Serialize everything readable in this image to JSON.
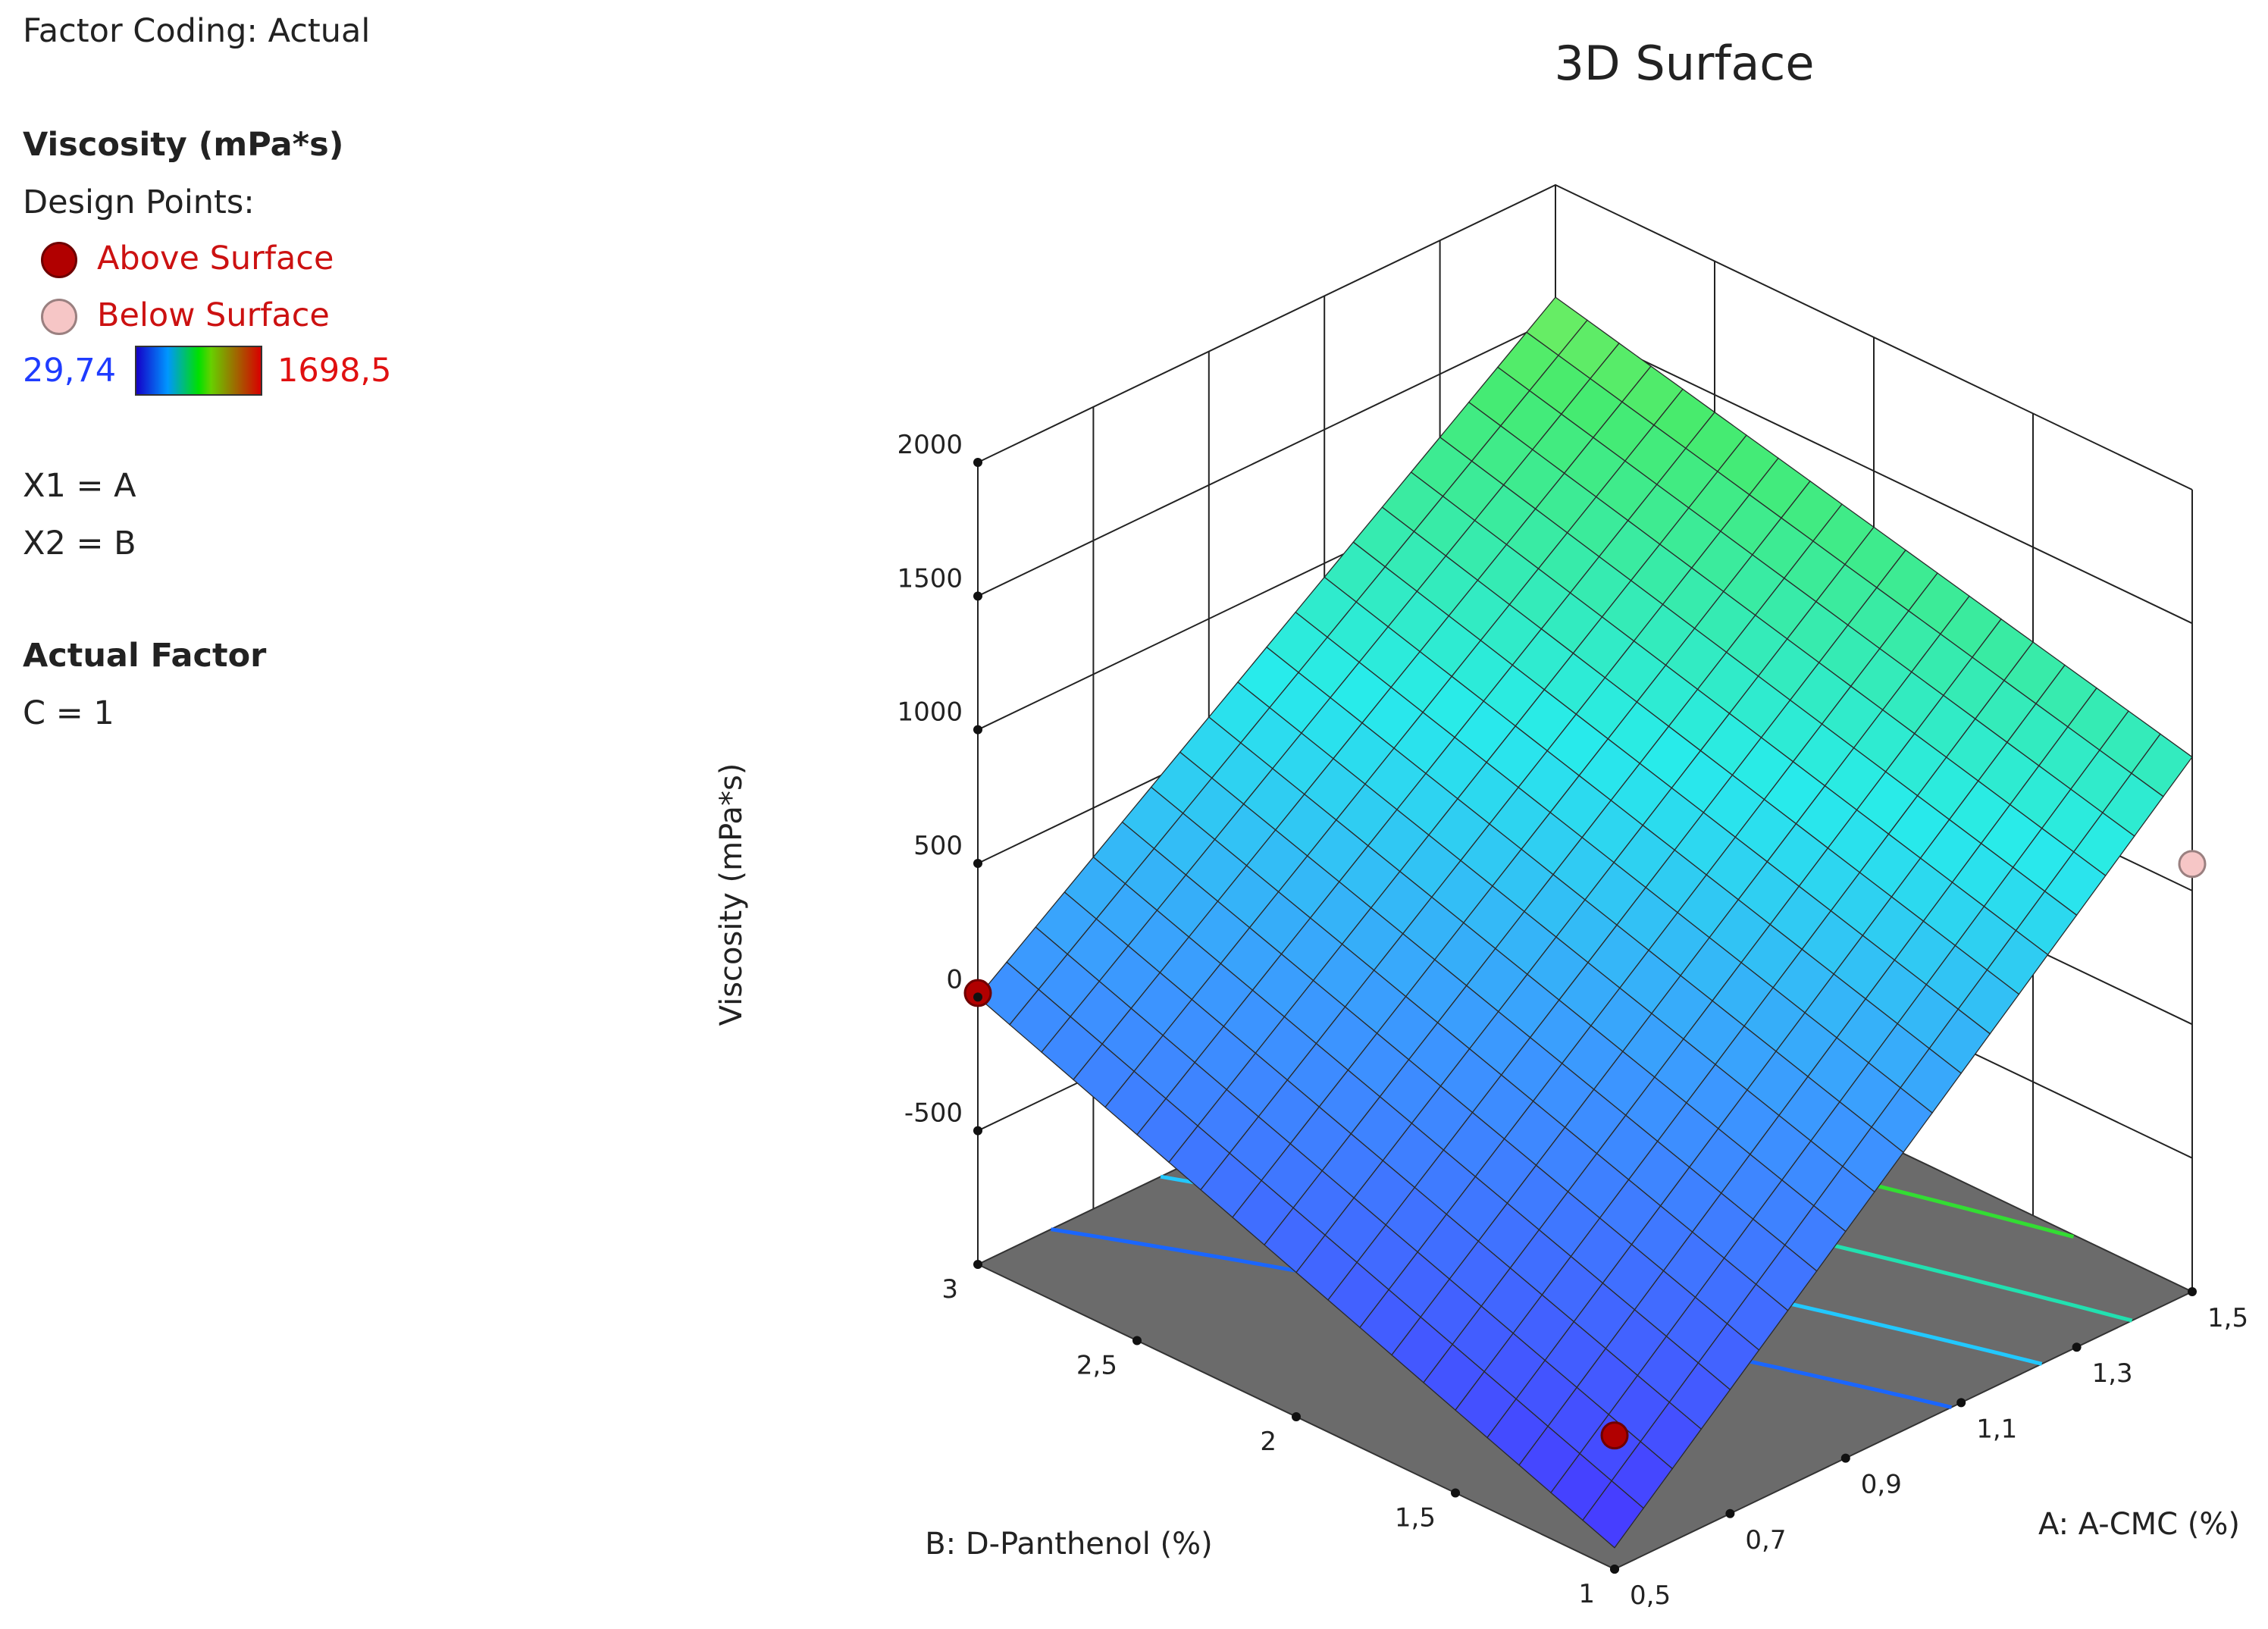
{
  "header": {
    "factor_coding": "Factor Coding: Actual"
  },
  "legend": {
    "response_title": "Viscosity (mPa*s)",
    "design_points_label": "Design Points:",
    "above_label": "Above Surface",
    "below_label": "Below Surface",
    "color_min": "29,74",
    "color_max": "1698,5",
    "x1_label": "X1 = A",
    "x2_label": "X2 = B",
    "actual_factor_title": "Actual Factor",
    "actual_factor_value": "C = 1"
  },
  "colors": {
    "above_point": "#b10000",
    "below_point": "#f6c6c6",
    "floor": "#6b6b6b",
    "color_min_text": "#1f3cff",
    "color_max_text": "#e01010"
  },
  "chart_data": {
    "type": "surface3d",
    "title": "3D Surface",
    "zlabel": "Viscosity (mPa*s)",
    "xlabel": "A: A-CMC (%)",
    "ylabel": "B: D-Panthenol (%)",
    "z_ticks": [
      "-500",
      "0",
      "500",
      "1000",
      "1500",
      "2000"
    ],
    "z_tick_values": [
      -500,
      0,
      500,
      1000,
      1500,
      2000
    ],
    "x_ticks": [
      "0,5",
      "0,7",
      "0,9",
      "1,1",
      "1,3",
      "1,5"
    ],
    "x_tick_values": [
      0.5,
      0.7,
      0.9,
      1.1,
      1.3,
      1.5
    ],
    "y_ticks": [
      "1",
      "1,5",
      "2",
      "2,5",
      "3"
    ],
    "y_tick_values": [
      1,
      1.5,
      2,
      2.5,
      3
    ],
    "xlim": [
      0.5,
      1.5
    ],
    "ylim": [
      1,
      3
    ],
    "zlim": [
      -500,
      2000
    ],
    "surface": {
      "corners": [
        {
          "A": 0.5,
          "B": 1,
          "viscosity": -920
        },
        {
          "A": 1.5,
          "B": 1,
          "viscosity": 1000
        },
        {
          "A": 0.5,
          "B": 3,
          "viscosity": 0
        },
        {
          "A": 1.5,
          "B": 3,
          "viscosity": 1580
        }
      ],
      "color_range": [
        29.74,
        1698.5
      ]
    },
    "contour_levels": [
      200,
      500,
      800,
      1100
    ],
    "design_points": [
      {
        "A": 0.5,
        "B": 1,
        "viscosity": -500,
        "position": "above"
      },
      {
        "A": 0.5,
        "B": 3,
        "viscosity": 15,
        "position": "above"
      },
      {
        "A": 1.5,
        "B": 1,
        "viscosity": 600,
        "position": "below"
      }
    ]
  }
}
